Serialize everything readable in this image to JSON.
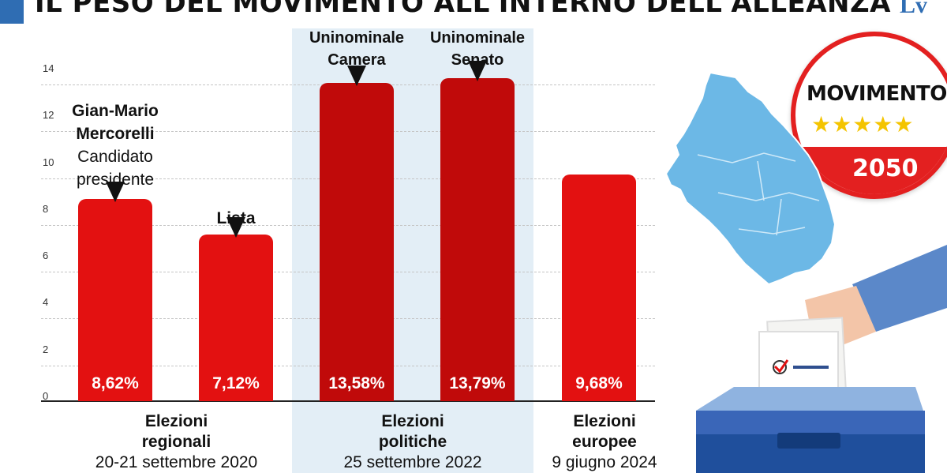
{
  "header": {
    "title": "IL PESO DEL MOVIMENTO ALL'INTERNO DELL'ALLEANZA",
    "logo_text": "Lv"
  },
  "chart_data": {
    "type": "bar",
    "ylim": [
      0,
      14
    ],
    "yticks": [
      "0",
      "2",
      "4",
      "6",
      "8",
      "10",
      "12",
      "14"
    ],
    "grid": true,
    "bars": [
      {
        "value": 8.62,
        "label": "8,62%"
      },
      {
        "value": 7.12,
        "label": "7,12%"
      },
      {
        "value": 13.58,
        "label": "13,58%"
      },
      {
        "value": 13.79,
        "label": "13,79%"
      },
      {
        "value": 9.68,
        "label": "9,68%"
      }
    ],
    "annotations": [
      {
        "bold": "Gian-Mario Mercorelli",
        "normal": "Candidato presidente"
      },
      {
        "bold": "Lista",
        "normal": ""
      },
      {
        "bold": "Uninominale",
        "normal": "Camera"
      },
      {
        "bold": "Uninominale",
        "normal": "Senato"
      }
    ],
    "groups": [
      {
        "title": "Elezioni regionali",
        "date": "20-21 settembre 2020"
      },
      {
        "title": "Elezioni politiche",
        "date": "25 settembre 2022"
      },
      {
        "title": "Elezioni europee",
        "date": "9 giugno 2024"
      }
    ]
  },
  "colors": {
    "bar_regional": "#e31111",
    "bar_political": "#c00a0a",
    "bar_european": "#e31111",
    "highlight_band": "#e3eef6",
    "map_fill": "#6cb8e6",
    "accent_blue": "#2f6db3"
  },
  "emblem": {
    "name": "MOVIMENTO",
    "number": "2050"
  },
  "illustration": {
    "map_icon": "marche-region-map-icon",
    "ballot_icon": "ballot-box-icon"
  }
}
